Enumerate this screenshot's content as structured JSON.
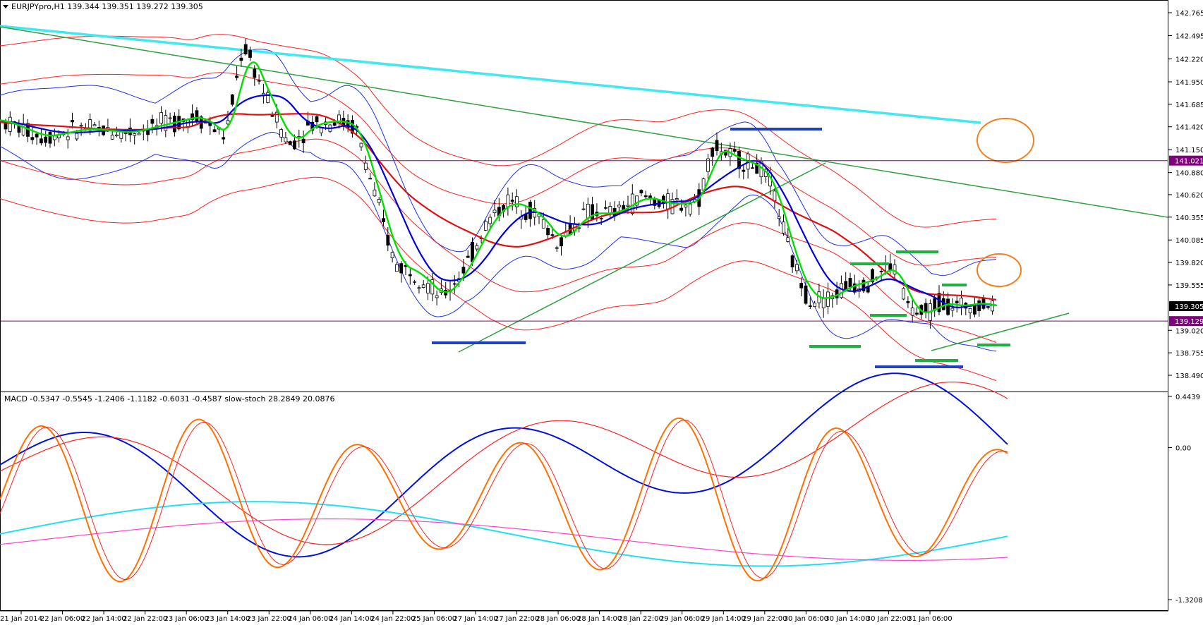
{
  "chart_data": [
    {
      "type": "candlestick",
      "title": "EURJPYpro,H1  139.344 139.351 139.272 139.305",
      "symbol": "EURJPYpro",
      "timeframe": "H1",
      "ohlc": {
        "open": 139.344,
        "high": 139.351,
        "low": 139.272,
        "close": 139.305
      },
      "ylim": [
        138.49,
        142.98
      ],
      "y_ticks": [
        "142.765",
        "142.495",
        "142.220",
        "141.950",
        "141.685",
        "141.420",
        "141.150",
        "140.880",
        "140.620",
        "140.355",
        "140.085",
        "139.820",
        "139.555",
        "139.020",
        "138.755",
        "138.490"
      ],
      "price_labels": [
        {
          "value": 141.021,
          "label": "141.021",
          "kind": "horizontal-line"
        },
        {
          "value": 139.305,
          "label": "139.305",
          "kind": "current-price"
        },
        {
          "value": 139.129,
          "label": "139.129",
          "kind": "horizontal-line"
        }
      ],
      "x_ticks": [
        "21 Jan 2014",
        "22 Jan 06:00",
        "22 Jan 14:00",
        "22 Jan 22:00",
        "23 Jan 06:00",
        "23 Jan 14:00",
        "23 Jan 22:00",
        "24 Jan 06:00",
        "24 Jan 14:00",
        "24 Jan 22:00",
        "25 Jan 06:00",
        "27 Jan 14:00",
        "27 Jan 22:00",
        "28 Jan 06:00",
        "28 Jan 14:00",
        "28 Jan 22:00",
        "29 Jan 06:00",
        "29 Jan 14:00",
        "29 Jan 22:00",
        "30 Jan 06:00",
        "30 Jan 14:00",
        "30 Jan 22:00",
        "31 Jan 06:00"
      ],
      "colors": {
        "bull_candle": "#ffffff",
        "bear_candle": "#000000",
        "ma_fast": "#00e000",
        "ma_mid": "#0000e0",
        "ma_slow": "#e01010",
        "bands_blue": "#2030f0",
        "bands_red": "#ff2020",
        "long_ma": "#40e8f0",
        "trendline": "#30a040",
        "support_resistance": "#2040c0",
        "horizontal_line": "#800080",
        "annotation_circle": "#f08020"
      }
    },
    {
      "type": "line",
      "title": "MACD -0.5347 -0.5545 -1.2406 -1.1182 -0.6031 -0.4587  slow-stoch 28.2849 20.0876",
      "ylim": [
        -1.3208,
        0.4439
      ],
      "y_ticks": [
        "0.4439",
        "0.00",
        "-1.3208"
      ],
      "series_colors": {
        "macd_blue": "#0010e0",
        "signal_red": "#ff2020",
        "cyan": "#20e0f0",
        "magenta": "#ff40d0",
        "stoch_main": "#ff7000",
        "stoch_signal": "#ff2020"
      }
    }
  ]
}
